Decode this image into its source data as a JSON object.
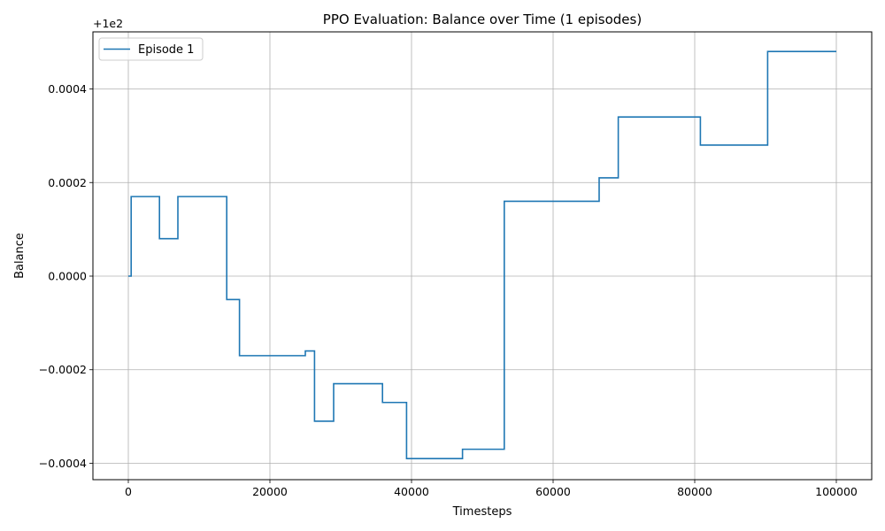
{
  "chart_data": {
    "type": "line",
    "title": "PPO Evaluation: Balance over Time (1 episodes)",
    "xlabel": "Timesteps",
    "ylabel": "Balance",
    "y_offset_label": "+1e2",
    "xlim": [
      -5000,
      105000
    ],
    "ylim": [
      -0.000435,
      0.000522
    ],
    "x_ticks": [
      0,
      20000,
      40000,
      60000,
      80000,
      100000
    ],
    "x_tick_labels": [
      "0",
      "20000",
      "40000",
      "60000",
      "80000",
      "100000"
    ],
    "y_ticks": [
      -0.0004,
      -0.0002,
      0.0,
      0.0002,
      0.0004
    ],
    "y_tick_labels": [
      "−0.0004",
      "−0.0002",
      "0.0000",
      "0.0002",
      "0.0004"
    ],
    "grid": true,
    "legend_position": "top-left",
    "series": [
      {
        "name": "Episode 1",
        "color": "#1f77b4",
        "step": true,
        "x": [
          0,
          400,
          4400,
          7000,
          13900,
          15700,
          25000,
          26300,
          29000,
          35900,
          39300,
          47200,
          53100,
          66500,
          69200,
          80800,
          90300,
          100000
        ],
        "y": [
          0.0,
          0.00017,
          8e-05,
          0.00017,
          -5e-05,
          -0.00017,
          -0.00016,
          -0.00031,
          -0.00023,
          -0.00027,
          -0.00039,
          -0.00037,
          0.00016,
          0.00021,
          0.00034,
          0.00028,
          0.00048,
          0.00048
        ]
      }
    ]
  }
}
